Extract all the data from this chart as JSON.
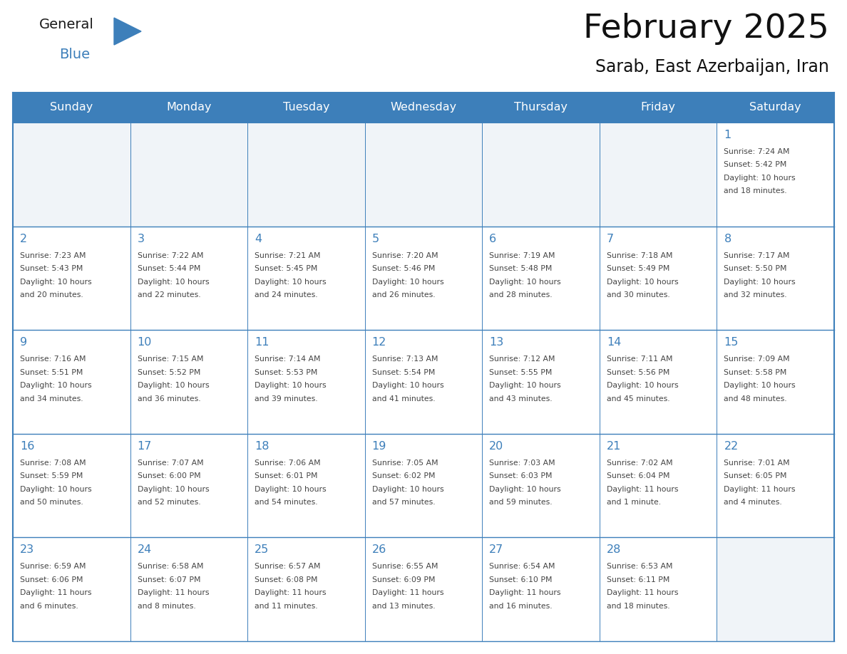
{
  "title": "February 2025",
  "subtitle": "Sarab, East Azerbaijan, Iran",
  "header_bg": "#3d7fba",
  "header_text": "#ffffff",
  "cell_bg": "#ffffff",
  "empty_cell_bg": "#f0f4f8",
  "cell_border_color": "#3d7fba",
  "day_number_color": "#3d7fba",
  "text_color": "#444444",
  "days_of_week": [
    "Sunday",
    "Monday",
    "Tuesday",
    "Wednesday",
    "Thursday",
    "Friday",
    "Saturday"
  ],
  "calendar_data": [
    [
      null,
      null,
      null,
      null,
      null,
      null,
      {
        "day": 1,
        "sunrise": "7:24 AM",
        "sunset": "5:42 PM",
        "daylight": "10 hours\nand 18 minutes."
      }
    ],
    [
      {
        "day": 2,
        "sunrise": "7:23 AM",
        "sunset": "5:43 PM",
        "daylight": "10 hours\nand 20 minutes."
      },
      {
        "day": 3,
        "sunrise": "7:22 AM",
        "sunset": "5:44 PM",
        "daylight": "10 hours\nand 22 minutes."
      },
      {
        "day": 4,
        "sunrise": "7:21 AM",
        "sunset": "5:45 PM",
        "daylight": "10 hours\nand 24 minutes."
      },
      {
        "day": 5,
        "sunrise": "7:20 AM",
        "sunset": "5:46 PM",
        "daylight": "10 hours\nand 26 minutes."
      },
      {
        "day": 6,
        "sunrise": "7:19 AM",
        "sunset": "5:48 PM",
        "daylight": "10 hours\nand 28 minutes."
      },
      {
        "day": 7,
        "sunrise": "7:18 AM",
        "sunset": "5:49 PM",
        "daylight": "10 hours\nand 30 minutes."
      },
      {
        "day": 8,
        "sunrise": "7:17 AM",
        "sunset": "5:50 PM",
        "daylight": "10 hours\nand 32 minutes."
      }
    ],
    [
      {
        "day": 9,
        "sunrise": "7:16 AM",
        "sunset": "5:51 PM",
        "daylight": "10 hours\nand 34 minutes."
      },
      {
        "day": 10,
        "sunrise": "7:15 AM",
        "sunset": "5:52 PM",
        "daylight": "10 hours\nand 36 minutes."
      },
      {
        "day": 11,
        "sunrise": "7:14 AM",
        "sunset": "5:53 PM",
        "daylight": "10 hours\nand 39 minutes."
      },
      {
        "day": 12,
        "sunrise": "7:13 AM",
        "sunset": "5:54 PM",
        "daylight": "10 hours\nand 41 minutes."
      },
      {
        "day": 13,
        "sunrise": "7:12 AM",
        "sunset": "5:55 PM",
        "daylight": "10 hours\nand 43 minutes."
      },
      {
        "day": 14,
        "sunrise": "7:11 AM",
        "sunset": "5:56 PM",
        "daylight": "10 hours\nand 45 minutes."
      },
      {
        "day": 15,
        "sunrise": "7:09 AM",
        "sunset": "5:58 PM",
        "daylight": "10 hours\nand 48 minutes."
      }
    ],
    [
      {
        "day": 16,
        "sunrise": "7:08 AM",
        "sunset": "5:59 PM",
        "daylight": "10 hours\nand 50 minutes."
      },
      {
        "day": 17,
        "sunrise": "7:07 AM",
        "sunset": "6:00 PM",
        "daylight": "10 hours\nand 52 minutes."
      },
      {
        "day": 18,
        "sunrise": "7:06 AM",
        "sunset": "6:01 PM",
        "daylight": "10 hours\nand 54 minutes."
      },
      {
        "day": 19,
        "sunrise": "7:05 AM",
        "sunset": "6:02 PM",
        "daylight": "10 hours\nand 57 minutes."
      },
      {
        "day": 20,
        "sunrise": "7:03 AM",
        "sunset": "6:03 PM",
        "daylight": "10 hours\nand 59 minutes."
      },
      {
        "day": 21,
        "sunrise": "7:02 AM",
        "sunset": "6:04 PM",
        "daylight": "11 hours\nand 1 minute."
      },
      {
        "day": 22,
        "sunrise": "7:01 AM",
        "sunset": "6:05 PM",
        "daylight": "11 hours\nand 4 minutes."
      }
    ],
    [
      {
        "day": 23,
        "sunrise": "6:59 AM",
        "sunset": "6:06 PM",
        "daylight": "11 hours\nand 6 minutes."
      },
      {
        "day": 24,
        "sunrise": "6:58 AM",
        "sunset": "6:07 PM",
        "daylight": "11 hours\nand 8 minutes."
      },
      {
        "day": 25,
        "sunrise": "6:57 AM",
        "sunset": "6:08 PM",
        "daylight": "11 hours\nand 11 minutes."
      },
      {
        "day": 26,
        "sunrise": "6:55 AM",
        "sunset": "6:09 PM",
        "daylight": "11 hours\nand 13 minutes."
      },
      {
        "day": 27,
        "sunrise": "6:54 AM",
        "sunset": "6:10 PM",
        "daylight": "11 hours\nand 16 minutes."
      },
      {
        "day": 28,
        "sunrise": "6:53 AM",
        "sunset": "6:11 PM",
        "daylight": "11 hours\nand 18 minutes."
      },
      null
    ]
  ],
  "logo_general_color": "#1a1a1a",
  "logo_blue_color": "#3d7fba",
  "logo_triangle_color": "#3d7fba",
  "fig_width": 11.88,
  "fig_height": 9.18,
  "dpi": 100
}
